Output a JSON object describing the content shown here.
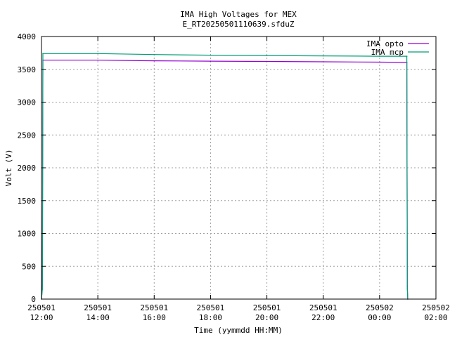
{
  "chart_data": {
    "type": "line",
    "title": "IMA High Voltages for MEX",
    "subtitle": "E_RT20250501110639.sfduZ",
    "xlabel": "Time (yymmdd HH:MM)",
    "ylabel": "Volt (V)",
    "xlim": [
      "2025-05-01 12:00",
      "2025-05-02 02:00"
    ],
    "ylim": [
      0,
      4000
    ],
    "yticks": [
      0,
      500,
      1000,
      1500,
      2000,
      2500,
      3000,
      3500,
      4000
    ],
    "xticks": [
      {
        "value": "2025-05-01 12:00",
        "date": "250501",
        "time": "12:00"
      },
      {
        "value": "2025-05-01 14:00",
        "date": "250501",
        "time": "14:00"
      },
      {
        "value": "2025-05-01 16:00",
        "date": "250501",
        "time": "16:00"
      },
      {
        "value": "2025-05-01 18:00",
        "date": "250501",
        "time": "18:00"
      },
      {
        "value": "2025-05-01 20:00",
        "date": "250501",
        "time": "20:00"
      },
      {
        "value": "2025-05-01 22:00",
        "date": "250501",
        "time": "22:00"
      },
      {
        "value": "2025-05-02 00:00",
        "date": "250502",
        "time": "00:00"
      },
      {
        "value": "2025-05-02 02:00",
        "date": "250502",
        "time": "02:00"
      }
    ],
    "grid": true,
    "legend_position": "top-right",
    "series": [
      {
        "name": "IMA opto",
        "color": "#9400d3",
        "points": [
          {
            "x": "2025-05-01 12:00",
            "y": 0
          },
          {
            "x": "2025-05-01 12:02",
            "y": 200
          },
          {
            "x": "2025-05-01 12:03",
            "y": 3640
          },
          {
            "x": "2025-05-01 14:00",
            "y": 3640
          },
          {
            "x": "2025-05-01 16:00",
            "y": 3630
          },
          {
            "x": "2025-05-01 18:00",
            "y": 3625
          },
          {
            "x": "2025-05-01 20:00",
            "y": 3620
          },
          {
            "x": "2025-05-01 22:00",
            "y": 3615
          },
          {
            "x": "2025-05-02 00:00",
            "y": 3610
          },
          {
            "x": "2025-05-02 00:58",
            "y": 3605
          },
          {
            "x": "2025-05-02 00:59",
            "y": 200
          },
          {
            "x": "2025-05-02 01:00",
            "y": 0
          }
        ]
      },
      {
        "name": "IMA mcp",
        "color": "#009e73",
        "points": [
          {
            "x": "2025-05-01 12:00",
            "y": 0
          },
          {
            "x": "2025-05-01 12:02",
            "y": 150
          },
          {
            "x": "2025-05-01 12:03",
            "y": 3740
          },
          {
            "x": "2025-05-01 14:00",
            "y": 3740
          },
          {
            "x": "2025-05-01 16:00",
            "y": 3725
          },
          {
            "x": "2025-05-01 18:00",
            "y": 3715
          },
          {
            "x": "2025-05-01 20:00",
            "y": 3710
          },
          {
            "x": "2025-05-01 22:00",
            "y": 3705
          },
          {
            "x": "2025-05-02 00:00",
            "y": 3700
          },
          {
            "x": "2025-05-02 00:58",
            "y": 3700
          },
          {
            "x": "2025-05-02 00:59",
            "y": 150
          },
          {
            "x": "2025-05-02 01:00",
            "y": 0
          }
        ]
      }
    ]
  }
}
